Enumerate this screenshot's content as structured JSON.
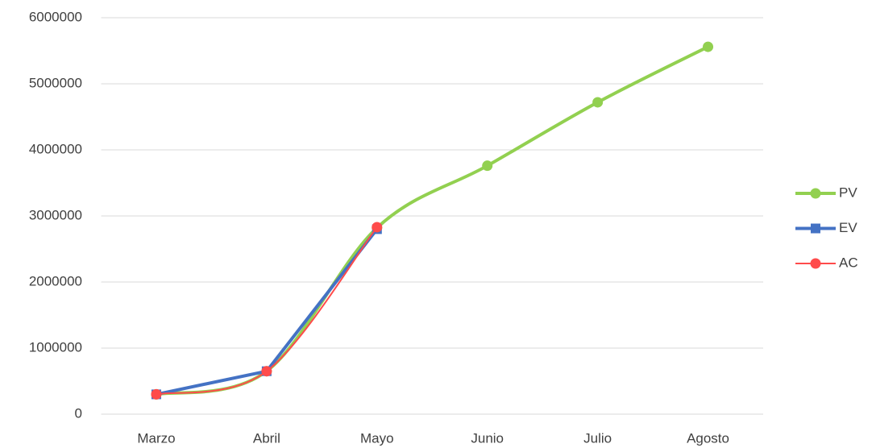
{
  "chart_data": {
    "type": "line",
    "categories": [
      "Marzo",
      "Abril",
      "Mayo",
      "Junio",
      "Julio",
      "Agosto"
    ],
    "series": [
      {
        "name": "PV",
        "color": "#92d050",
        "marker": "circle",
        "smooth": true,
        "values": [
          300000,
          650000,
          2820000,
          3760000,
          4720000,
          5560000
        ]
      },
      {
        "name": "EV",
        "color": "#4472c4",
        "marker": "square",
        "smooth": false,
        "values": [
          300000,
          650000,
          2800000,
          null,
          null,
          null
        ]
      },
      {
        "name": "AC",
        "color": "#ff4b4b",
        "marker": "circle",
        "smooth": true,
        "values": [
          300000,
          650000,
          2830000,
          null,
          null,
          null
        ]
      }
    ],
    "ylim": [
      0,
      6000000
    ],
    "yticks": [
      0,
      1000000,
      2000000,
      3000000,
      4000000,
      5000000,
      6000000
    ],
    "grid": true,
    "legend": "right"
  }
}
